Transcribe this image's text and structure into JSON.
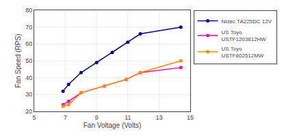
{
  "chart_data": {
    "type": "line",
    "xlabel": "Fan Voltage (Volts)",
    "ylabel": "Fan Speed (RPS)",
    "series": [
      {
        "name": "Nidec TA225DC 12V",
        "color": "#00008B",
        "marker": "circle",
        "line_style": "solid",
        "x": [
          6.85,
          7.2,
          8.0,
          9.0,
          10.0,
          11.0,
          11.8,
          14.4
        ],
        "values": [
          32,
          36,
          43,
          49,
          55,
          61,
          66,
          70
        ]
      },
      {
        "name": "US Toyo\nUSTF1203812HW",
        "color": "#FF00AA",
        "marker": "circle",
        "line_style": "solid",
        "x": [
          6.85,
          7.2,
          8.0,
          9.5,
          10.9,
          11.8,
          14.4
        ],
        "values": [
          24,
          26,
          31,
          35,
          39,
          43,
          46
        ]
      },
      {
        "name": "US Toyo\nUSTF802512MW",
        "color": "#FF8C00",
        "marker": "circle",
        "line_style": "solid",
        "x": [
          6.85,
          7.2,
          8.0,
          9.5,
          10.9,
          11.8,
          14.4
        ],
        "values": [
          23,
          24,
          31,
          35,
          39,
          43,
          50
        ]
      }
    ],
    "xlim": [
      5,
      15
    ],
    "ylim": [
      20,
      80
    ],
    "xticks": [
      5,
      7,
      9,
      11,
      13,
      15
    ],
    "yticks": [
      20,
      30,
      40,
      50,
      60,
      70,
      80
    ],
    "grid": true,
    "legend": "right"
  }
}
